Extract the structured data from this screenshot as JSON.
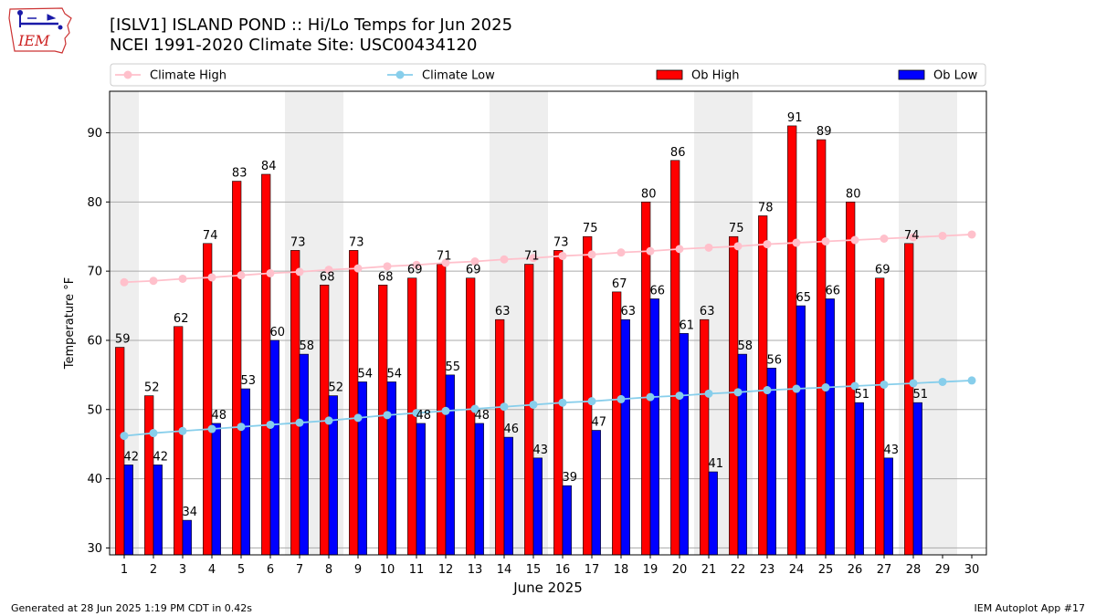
{
  "header": {
    "title_line1": "[ISLV1] ISLAND POND :: Hi/Lo Temps for Jun 2025",
    "title_line2": "NCEI 1991-2020 Climate Site: USC00434120"
  },
  "logo": {
    "text": "IEM",
    "icon": "iowa-state-outline-icon"
  },
  "footer": {
    "generated": "Generated at 28 Jun 2025 1:19 PM CDT in 0.42s",
    "app": "IEM Autoplot App #17"
  },
  "colors": {
    "ob_high": "#ff0000",
    "ob_low": "#0000ff",
    "climate_high": "#ffc0cb",
    "climate_low": "#87ceeb",
    "weekend_band": "#eeeeee",
    "grid": "#aaaaaa"
  },
  "chart_data": {
    "type": "bar",
    "title": "[ISLV1] ISLAND POND :: Hi/Lo Temps for Jun 2025",
    "subtitle": "NCEI 1991-2020 Climate Site: USC00434120",
    "xlabel": "June 2025",
    "ylabel": "Temperature °F",
    "ylim": [
      29,
      96
    ],
    "yticks": [
      30,
      40,
      50,
      60,
      70,
      80,
      90
    ],
    "categories": [
      "1",
      "2",
      "3",
      "4",
      "5",
      "6",
      "7",
      "8",
      "9",
      "10",
      "11",
      "12",
      "13",
      "14",
      "15",
      "16",
      "17",
      "18",
      "19",
      "20",
      "21",
      "22",
      "23",
      "24",
      "25",
      "26",
      "27",
      "28",
      "29",
      "30"
    ],
    "shaded_days": [
      1,
      7,
      8,
      14,
      15,
      21,
      22,
      28,
      29
    ],
    "grid": true,
    "legend": {
      "position": "top",
      "entries": [
        "Climate High",
        "Climate Low",
        "Ob High",
        "Ob Low"
      ]
    },
    "series": [
      {
        "name": "Ob High",
        "kind": "bar",
        "values": [
          59,
          52,
          62,
          74,
          83,
          84,
          73,
          68,
          73,
          68,
          69,
          71,
          69,
          63,
          71,
          73,
          75,
          67,
          80,
          86,
          63,
          75,
          78,
          91,
          89,
          80,
          69,
          74,
          null,
          null
        ]
      },
      {
        "name": "Ob Low",
        "kind": "bar",
        "values": [
          42,
          42,
          34,
          48,
          53,
          60,
          58,
          52,
          54,
          54,
          48,
          55,
          48,
          46,
          43,
          39,
          47,
          63,
          66,
          61,
          41,
          58,
          56,
          65,
          66,
          51,
          43,
          51,
          null,
          null
        ]
      },
      {
        "name": "Climate High",
        "kind": "line",
        "values": [
          68.4,
          68.6,
          68.9,
          69.1,
          69.4,
          69.7,
          69.9,
          70.2,
          70.4,
          70.7,
          70.9,
          71.2,
          71.4,
          71.7,
          71.9,
          72.2,
          72.4,
          72.7,
          72.9,
          73.2,
          73.4,
          73.6,
          73.9,
          74.1,
          74.3,
          74.5,
          74.7,
          74.9,
          75.1,
          75.3
        ]
      },
      {
        "name": "Climate Low",
        "kind": "line",
        "values": [
          46.2,
          46.6,
          46.9,
          47.2,
          47.5,
          47.8,
          48.1,
          48.4,
          48.8,
          49.2,
          49.5,
          49.8,
          50.1,
          50.4,
          50.7,
          51.0,
          51.2,
          51.5,
          51.8,
          52.0,
          52.3,
          52.5,
          52.8,
          53.0,
          53.2,
          53.4,
          53.6,
          53.8,
          54.0,
          54.2
        ]
      }
    ]
  }
}
